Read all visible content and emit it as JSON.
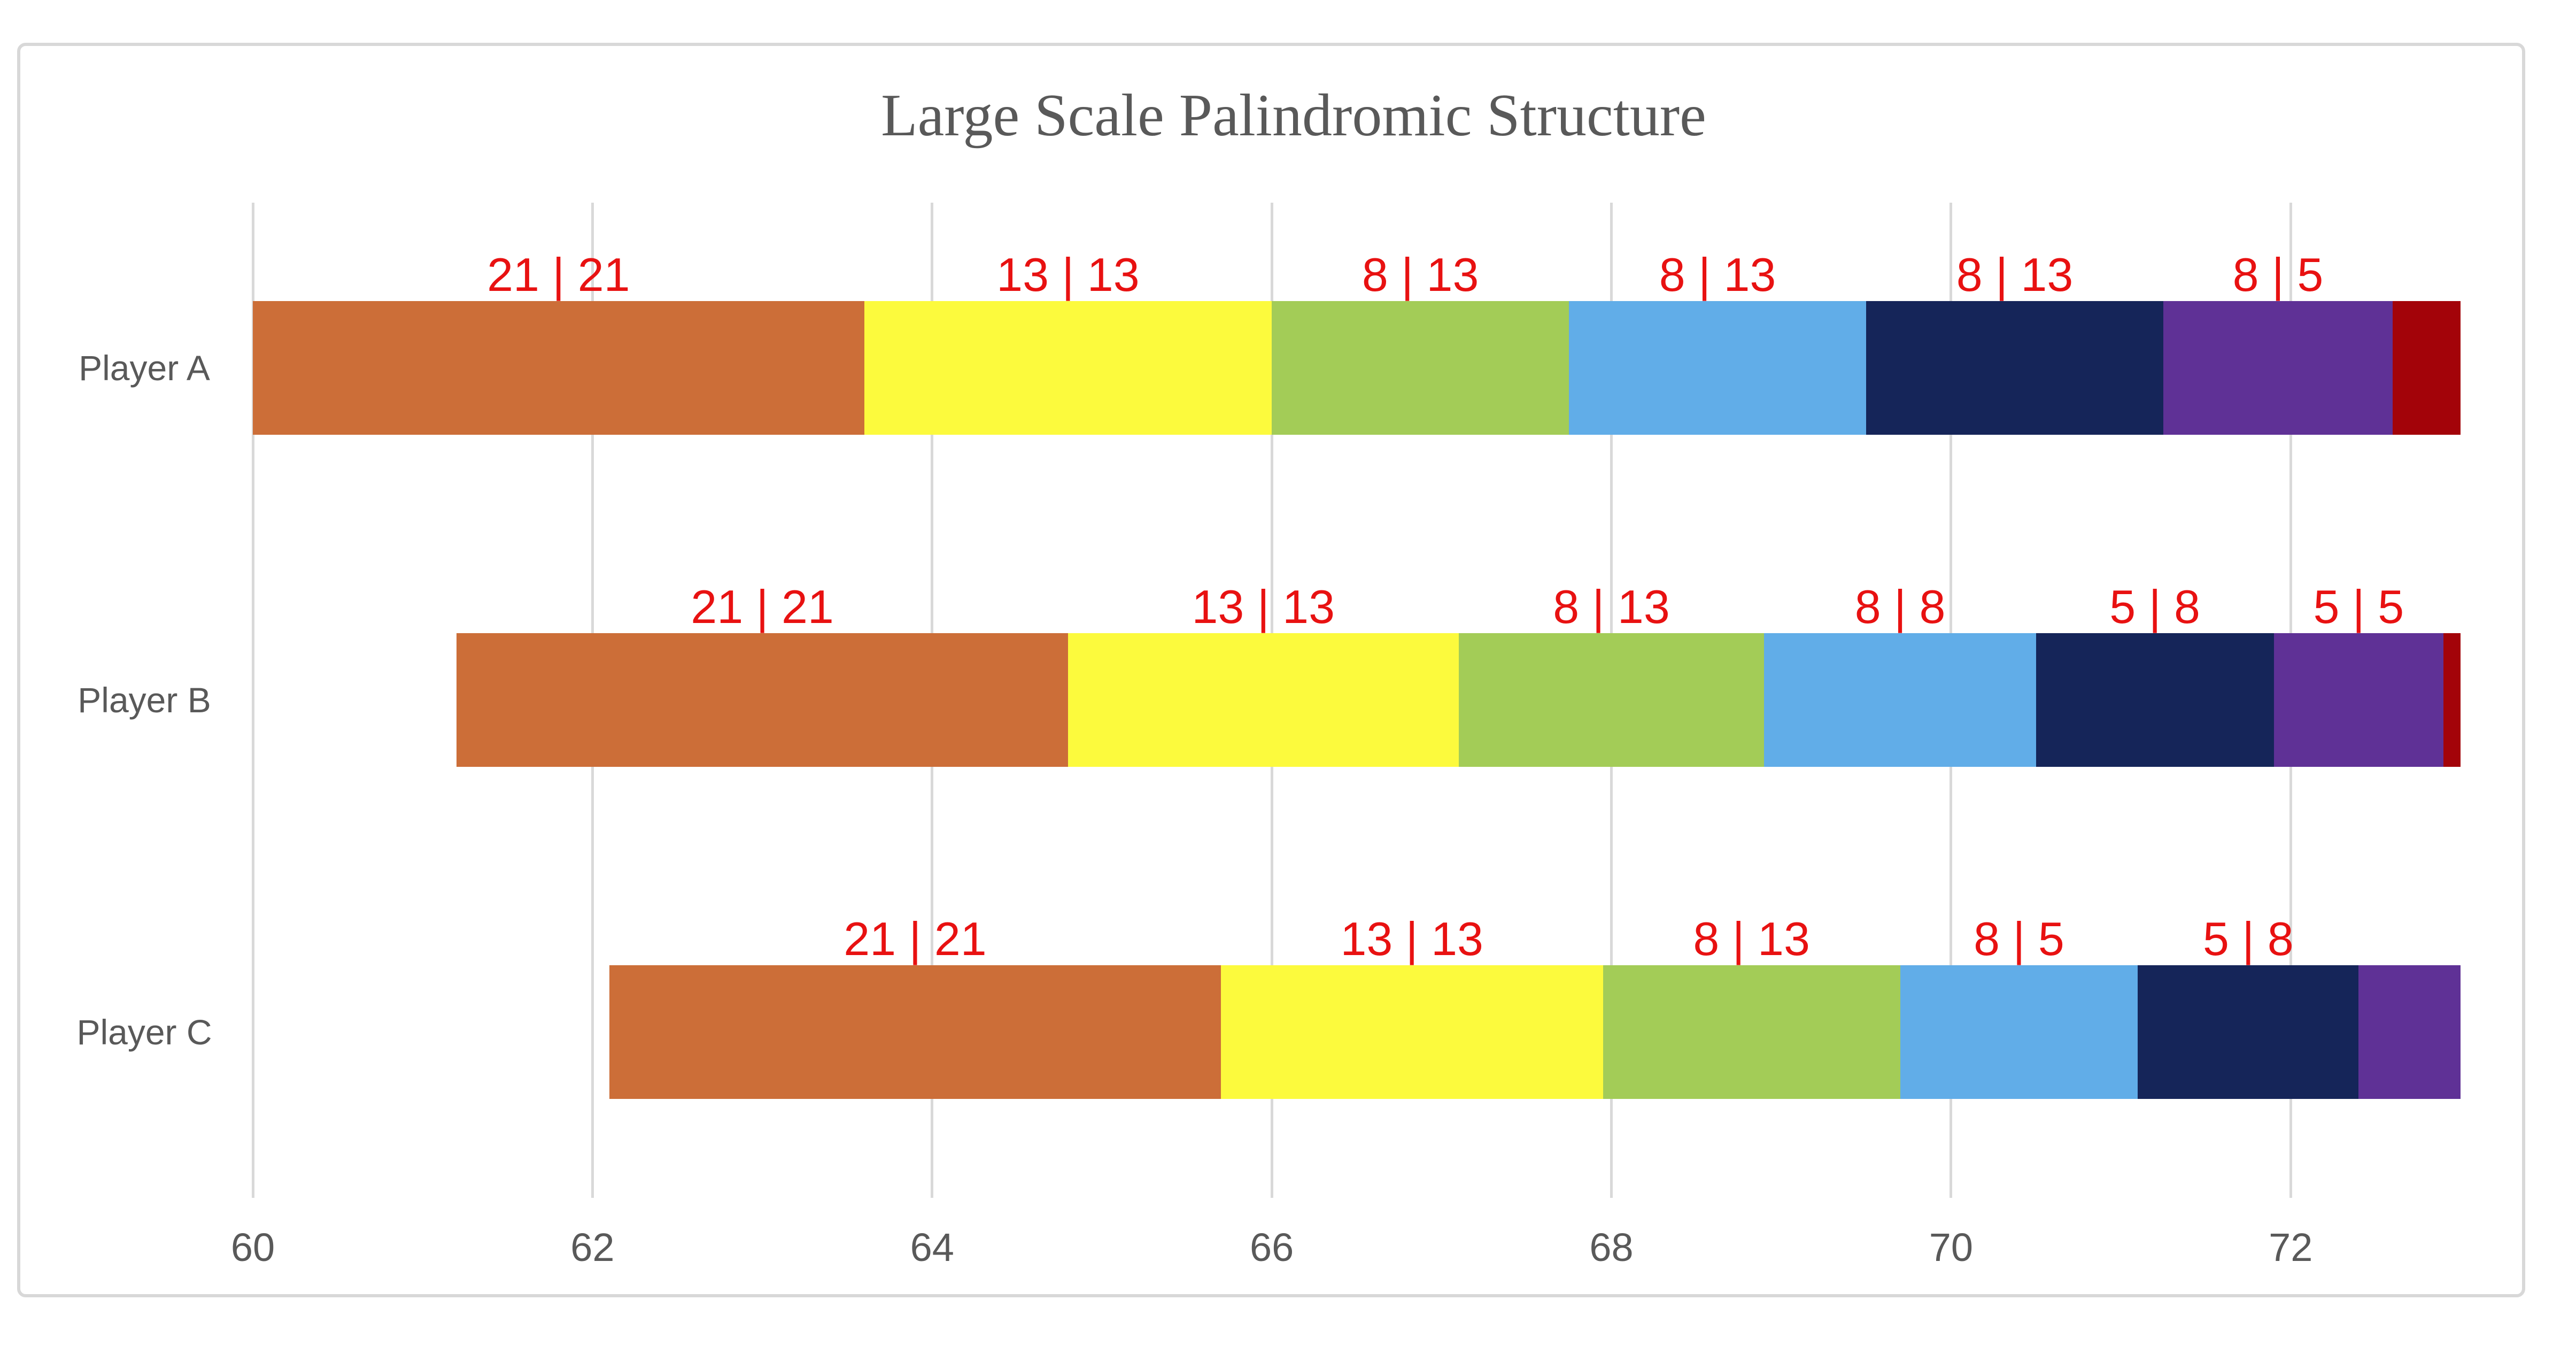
{
  "title": "Large Scale Palindromic Structure",
  "colors": {
    "title_text": "#595959",
    "axis_text": "#595959",
    "gridline": "#D9D9D9",
    "border": "#D8D8D8",
    "data_label": "#E81111"
  },
  "chart_data": {
    "type": "bar",
    "subtype": "horizontal-stacked-timeline",
    "title": "Large Scale Palindromic Structure",
    "xlabel": "",
    "ylabel": "",
    "x_axis": {
      "min": 60,
      "max": 73,
      "ticks": [
        60,
        62,
        64,
        66,
        68,
        70,
        72
      ],
      "gridlines": true
    },
    "legend": "none",
    "rows": [
      {
        "category": "Player A",
        "segments": [
          {
            "start": 60.0,
            "end": 63.6,
            "color": "#CC6E38",
            "color_name": "orange",
            "label": "21 | 21"
          },
          {
            "start": 63.6,
            "end": 66.0,
            "color": "#FCFA3D",
            "color_name": "yellow",
            "label": "13 | 13"
          },
          {
            "start": 66.0,
            "end": 67.75,
            "color": "#A3CC57",
            "color_name": "green",
            "label": "8 | 13"
          },
          {
            "start": 67.75,
            "end": 69.5,
            "color": "#61ADE8",
            "color_name": "light-blue",
            "label": "8 | 13"
          },
          {
            "start": 69.5,
            "end": 71.25,
            "color": "#152559",
            "color_name": "navy",
            "label": "8 | 13"
          },
          {
            "start": 71.25,
            "end": 72.6,
            "color": "#5F3196",
            "color_name": "purple",
            "label": "8 | 5"
          },
          {
            "start": 72.6,
            "end": 73.0,
            "color": "#A30309",
            "color_name": "dark-red",
            "label": ""
          }
        ]
      },
      {
        "category": "Player B",
        "segments": [
          {
            "start": 61.2,
            "end": 64.8,
            "color": "#CC6E38",
            "color_name": "orange",
            "label": "21 | 21"
          },
          {
            "start": 64.8,
            "end": 67.1,
            "color": "#FCFA3D",
            "color_name": "yellow",
            "label": "13 | 13"
          },
          {
            "start": 67.1,
            "end": 68.9,
            "color": "#A3CC57",
            "color_name": "green",
            "label": "8 | 13"
          },
          {
            "start": 68.9,
            "end": 70.5,
            "color": "#61ADE8",
            "color_name": "light-blue",
            "label": "8 | 8"
          },
          {
            "start": 70.5,
            "end": 71.9,
            "color": "#152559",
            "color_name": "navy",
            "label": "5 | 8"
          },
          {
            "start": 71.9,
            "end": 72.9,
            "color": "#5F3196",
            "color_name": "purple",
            "label": "5 | 5"
          },
          {
            "start": 72.9,
            "end": 73.0,
            "color": "#A30309",
            "color_name": "dark-red",
            "label": ""
          }
        ]
      },
      {
        "category": "Player C",
        "segments": [
          {
            "start": 62.1,
            "end": 65.7,
            "color": "#CC6E38",
            "color_name": "orange",
            "label": "21 | 21"
          },
          {
            "start": 65.7,
            "end": 67.95,
            "color": "#FCFA3D",
            "color_name": "yellow",
            "label": "13 | 13"
          },
          {
            "start": 67.95,
            "end": 69.7,
            "color": "#A3CC57",
            "color_name": "green",
            "label": "8 | 13"
          },
          {
            "start": 69.7,
            "end": 71.1,
            "color": "#61ADE8",
            "color_name": "light-blue",
            "label": "8 | 5"
          },
          {
            "start": 71.1,
            "end": 72.4,
            "color": "#152559",
            "color_name": "navy",
            "label": "5 | 8"
          },
          {
            "start": 72.4,
            "end": 73.0,
            "color": "#5F3196",
            "color_name": "purple",
            "label": ""
          }
        ]
      }
    ]
  }
}
